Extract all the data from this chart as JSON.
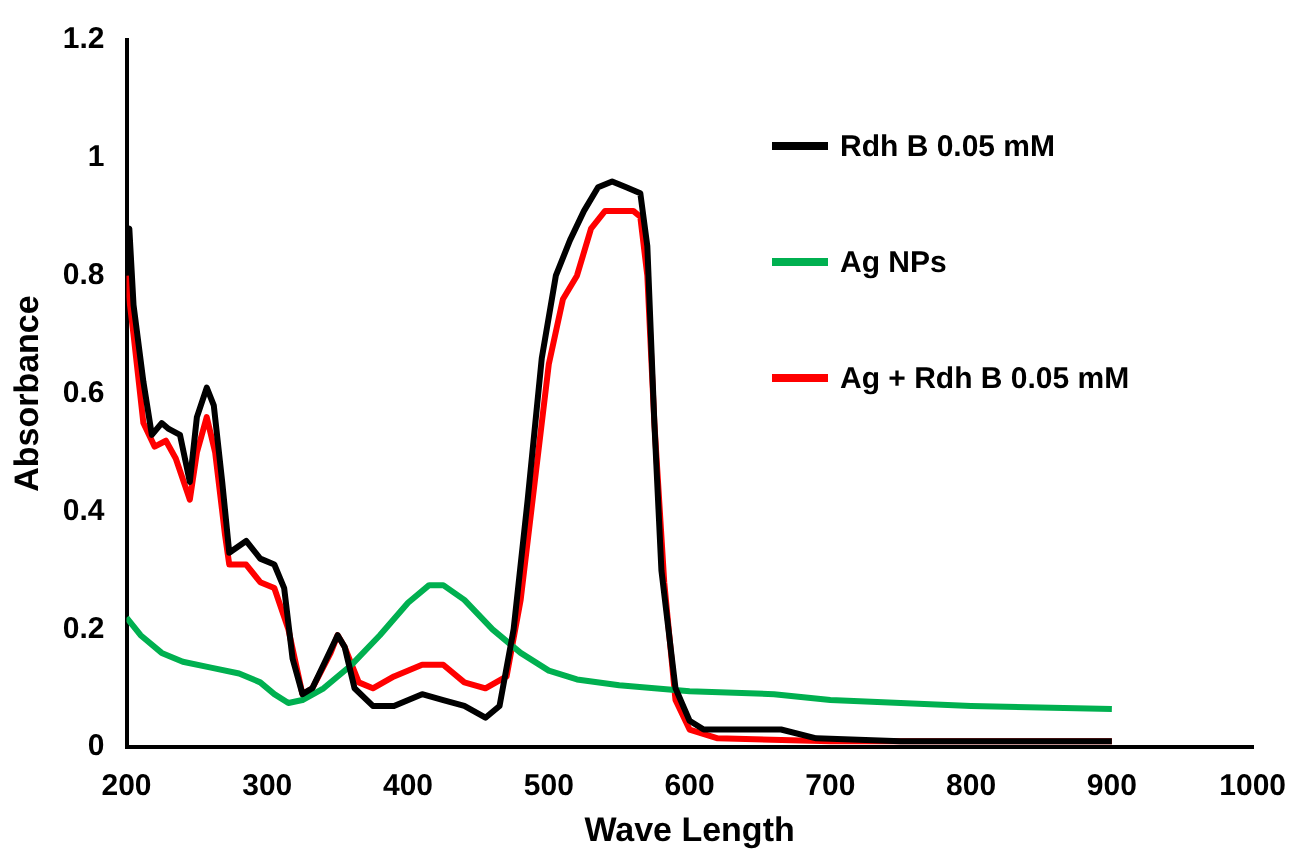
{
  "chart_data": {
    "type": "line",
    "xlabel": "Wave Length",
    "ylabel": "Absorbance",
    "xlim": [
      200,
      1000
    ],
    "xticks": [
      200,
      300,
      400,
      500,
      600,
      700,
      800,
      900,
      1000
    ],
    "ylim": [
      0,
      1.2
    ],
    "yticks": [
      0,
      0.2,
      0.4,
      0.6,
      0.8,
      1,
      1.2
    ],
    "grid": false,
    "legend": "right",
    "marker": "none",
    "line_style": "solid",
    "series": [
      {
        "name": "Rdh B 0.05 mM",
        "color": "#000000",
        "x": [
          200,
          202,
          205,
          212,
          218,
          225,
          230,
          238,
          245,
          250,
          257,
          262,
          268,
          273,
          285,
          295,
          305,
          312,
          318,
          325,
          332,
          340,
          350,
          355,
          362,
          375,
          390,
          410,
          425,
          440,
          455,
          465,
          475,
          485,
          495,
          505,
          515,
          525,
          535,
          545,
          555,
          565,
          570,
          575,
          580,
          590,
          600,
          610,
          640,
          665,
          690,
          750,
          900
        ],
        "values": [
          0.87,
          0.88,
          0.75,
          0.62,
          0.53,
          0.55,
          0.54,
          0.53,
          0.45,
          0.56,
          0.61,
          0.58,
          0.45,
          0.33,
          0.35,
          0.32,
          0.31,
          0.27,
          0.15,
          0.09,
          0.1,
          0.14,
          0.19,
          0.17,
          0.1,
          0.07,
          0.07,
          0.09,
          0.08,
          0.07,
          0.05,
          0.07,
          0.2,
          0.42,
          0.66,
          0.8,
          0.86,
          0.91,
          0.95,
          0.96,
          0.95,
          0.94,
          0.85,
          0.55,
          0.3,
          0.1,
          0.045,
          0.03,
          0.03,
          0.03,
          0.015,
          0.01,
          0.01
        ]
      },
      {
        "name": "Ag NPs",
        "color": "#00b050",
        "x": [
          200,
          210,
          225,
          240,
          260,
          280,
          295,
          305,
          315,
          325,
          340,
          360,
          380,
          400,
          415,
          425,
          440,
          460,
          480,
          500,
          520,
          550,
          600,
          660,
          700,
          800,
          900
        ],
        "values": [
          0.22,
          0.19,
          0.16,
          0.145,
          0.135,
          0.125,
          0.11,
          0.09,
          0.075,
          0.08,
          0.1,
          0.14,
          0.19,
          0.245,
          0.275,
          0.275,
          0.25,
          0.2,
          0.16,
          0.13,
          0.115,
          0.105,
          0.095,
          0.09,
          0.08,
          0.07,
          0.065
        ]
      },
      {
        "name": "Ag + Rdh B 0.05 mM",
        "color": "#ff0000",
        "x": [
          200,
          205,
          212,
          220,
          228,
          235,
          245,
          250,
          257,
          263,
          270,
          273,
          285,
          295,
          305,
          315,
          325,
          332,
          345,
          350,
          355,
          365,
          375,
          390,
          410,
          425,
          440,
          455,
          470,
          480,
          490,
          500,
          510,
          520,
          530,
          540,
          550,
          560,
          565,
          570,
          575,
          582,
          590,
          600,
          620,
          700,
          900
        ],
        "values": [
          0.8,
          0.7,
          0.55,
          0.51,
          0.52,
          0.49,
          0.42,
          0.5,
          0.56,
          0.5,
          0.36,
          0.31,
          0.31,
          0.28,
          0.27,
          0.2,
          0.09,
          0.1,
          0.16,
          0.19,
          0.17,
          0.11,
          0.1,
          0.12,
          0.14,
          0.14,
          0.11,
          0.1,
          0.12,
          0.25,
          0.45,
          0.65,
          0.76,
          0.8,
          0.88,
          0.91,
          0.91,
          0.91,
          0.9,
          0.8,
          0.55,
          0.28,
          0.08,
          0.03,
          0.015,
          0.01,
          0.01
        ]
      }
    ]
  }
}
